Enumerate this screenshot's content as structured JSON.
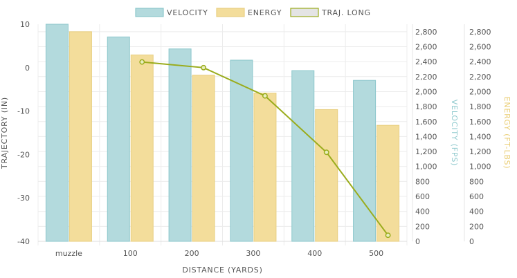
{
  "chart_data": {
    "type": "bar",
    "categories": [
      "muzzle",
      "100",
      "200",
      "300",
      "400",
      "500"
    ],
    "xlabel": "DISTANCE (YARDS)",
    "series": [
      {
        "name": "VELOCITY",
        "kind": "bar",
        "axis": "velocity",
        "values": [
          2900,
          2730,
          2570,
          2420,
          2280,
          2150
        ],
        "color": "#b3dadd",
        "border": "#8cc7cc"
      },
      {
        "name": "ENERGY",
        "kind": "bar",
        "axis": "energy",
        "values": [
          2800,
          2490,
          2220,
          1980,
          1760,
          1550
        ],
        "color": "#f3dd9b",
        "border": "#e8cf82"
      },
      {
        "name": "TRAJ. LONG",
        "kind": "line",
        "axis": "trajectory",
        "values": [
          null,
          1.3,
          0.0,
          -6.5,
          -19.5,
          -38.6
        ],
        "color": "#9aac1c"
      }
    ],
    "axes": {
      "trajectory": {
        "label": "TRAJECTORY (IN)",
        "min": -40,
        "max": 10,
        "ticks": [
          10,
          0,
          -10,
          -20,
          -30,
          -40
        ],
        "position": "left",
        "color": "#555555"
      },
      "velocity": {
        "label": "VELOCITY (FPS)",
        "min": 0,
        "max": 2900,
        "ticks": [
          0,
          200,
          400,
          600,
          800,
          1000,
          1200,
          1400,
          1600,
          1800,
          2000,
          2200,
          2400,
          2600,
          2800
        ],
        "tick_labels": [
          "0",
          "200",
          "400",
          "600",
          "800",
          "1,000",
          "1,200",
          "1,400",
          "1,600",
          "1,800",
          "2,000",
          "2,200",
          "2,400",
          "2,600",
          "2,800"
        ],
        "position": "right",
        "color": "#8ec9cd"
      },
      "energy": {
        "label": "ENERGY (FT-LBS)",
        "min": 0,
        "max": 2900,
        "ticks": [
          0,
          200,
          400,
          600,
          800,
          1000,
          1200,
          1400,
          1600,
          1800,
          2000,
          2200,
          2400,
          2600,
          2800
        ],
        "tick_labels": [
          "0",
          "200",
          "400",
          "600",
          "800",
          "1,000",
          "1,200",
          "1,400",
          "1,600",
          "1,800",
          "2,000",
          "2,200",
          "2,400",
          "2,600",
          "2,800"
        ],
        "position": "right",
        "color": "#e9cc70"
      }
    },
    "legend": {
      "position": "top-center"
    },
    "grid": true
  }
}
